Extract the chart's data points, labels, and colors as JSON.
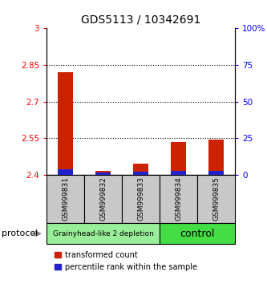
{
  "title": "GDS5113 / 10342691",
  "samples": [
    "GSM999831",
    "GSM999832",
    "GSM999833",
    "GSM999834",
    "GSM999835"
  ],
  "transformed_counts": [
    2.82,
    2.415,
    2.445,
    2.535,
    2.545
  ],
  "base_value": 2.4,
  "percentile_ranks": [
    3.5,
    1.5,
    2.2,
    2.5,
    2.5
  ],
  "ylim_left": [
    2.4,
    3.0
  ],
  "ylim_right": [
    0,
    100
  ],
  "yticks_left": [
    2.4,
    2.55,
    2.7,
    2.85,
    3.0
  ],
  "yticks_right": [
    0,
    25,
    50,
    75,
    100
  ],
  "ytick_labels_left": [
    "2.4",
    "2.55",
    "2.7",
    "2.85",
    "3"
  ],
  "ytick_labels_right": [
    "0",
    "25",
    "50",
    "75",
    "100%"
  ],
  "groups": [
    {
      "label": "Grainyhead-like 2 depletion",
      "samples": [
        0,
        1,
        2
      ],
      "color": "#99ee99",
      "text_size": 6.5
    },
    {
      "label": "control",
      "samples": [
        3,
        4
      ],
      "color": "#44dd44",
      "text_size": 9
    }
  ],
  "bar_width": 0.4,
  "red_color": "#cc2200",
  "blue_color": "#2222cc",
  "bar_bg_color": "#c8c8c8",
  "protocol_label": "protocol",
  "legend_red": "transformed count",
  "legend_blue": "percentile rank within the sample",
  "title_fontsize": 10,
  "tick_fontsize": 7.5,
  "sample_fontsize": 6.5
}
